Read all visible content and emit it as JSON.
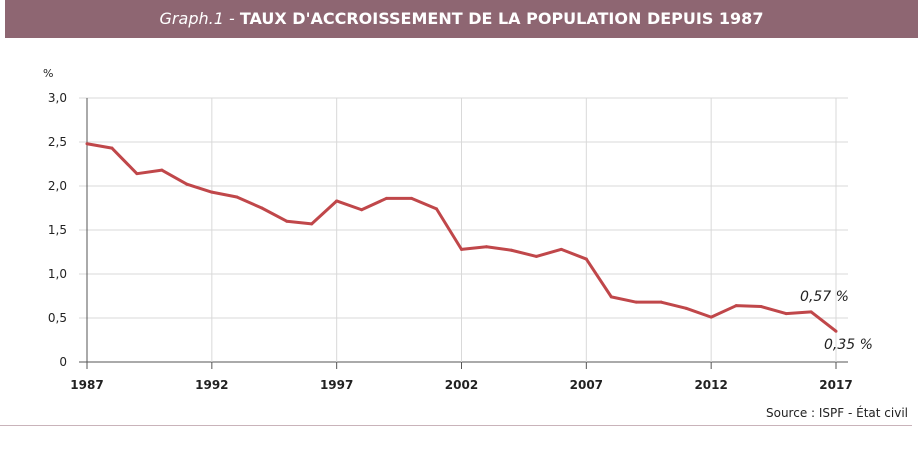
{
  "header": {
    "prefix": "Graph.1 -",
    "title": "TAUX D'ACCROISSEMENT DE LA POPULATION DEPUIS 1987"
  },
  "source": "Source : ISPF - État civil",
  "colors": {
    "banner": "#8e6672",
    "line": "#c0474a",
    "grid": "#d9d9d9"
  },
  "chart_data": {
    "type": "line",
    "title": "TAUX D'ACCROISSEMENT DE LA POPULATION DEPUIS 1987",
    "ylabel": "%",
    "xlabel": "",
    "ylim": [
      0,
      3.0
    ],
    "xlim": [
      1987,
      2017
    ],
    "grid": true,
    "yticks": [
      "0",
      "0,5",
      "1,0",
      "1,5",
      "2,0",
      "2,5",
      "3,0"
    ],
    "xticks": [
      "1987",
      "1992",
      "1997",
      "2002",
      "2007",
      "2012",
      "2017"
    ],
    "x": [
      1987,
      1988,
      1989,
      1990,
      1991,
      1992,
      1993,
      1994,
      1995,
      1996,
      1997,
      1998,
      1999,
      2000,
      2001,
      2002,
      2003,
      2004,
      2005,
      2006,
      2007,
      2008,
      2009,
      2010,
      2011,
      2012,
      2013,
      2014,
      2015,
      2016,
      2017
    ],
    "values": [
      2.48,
      2.43,
      2.14,
      2.18,
      2.02,
      1.93,
      1.875,
      1.75,
      1.6,
      1.57,
      1.83,
      1.73,
      1.86,
      1.86,
      1.74,
      1.28,
      1.31,
      1.27,
      1.2,
      1.28,
      1.17,
      0.74,
      0.68,
      0.68,
      0.61,
      0.51,
      0.64,
      0.63,
      0.55,
      0.57,
      0.35
    ],
    "annotations": [
      {
        "x": 2016,
        "y": 0.57,
        "text": "0,57 %"
      },
      {
        "x": 2017,
        "y": 0.35,
        "text": "0,35 %"
      }
    ]
  }
}
